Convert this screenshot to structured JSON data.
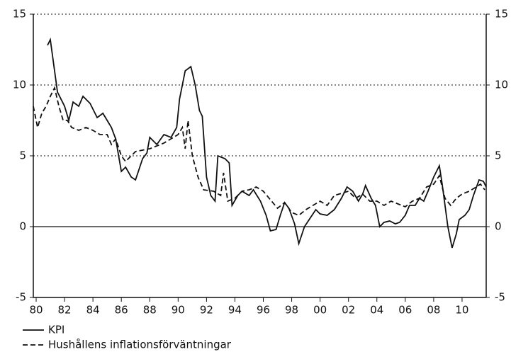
{
  "chart_data": {
    "type": "line",
    "xlim": [
      1979.8,
      2011.7
    ],
    "xticks": [
      {
        "value": 1980,
        "label": "80"
      },
      {
        "value": 1982,
        "label": "82"
      },
      {
        "value": 1984,
        "label": "84"
      },
      {
        "value": 1986,
        "label": "86"
      },
      {
        "value": 1988,
        "label": "88"
      },
      {
        "value": 1990,
        "label": "90"
      },
      {
        "value": 1992,
        "label": "92"
      },
      {
        "value": 1994,
        "label": "94"
      },
      {
        "value": 1996,
        "label": "96"
      },
      {
        "value": 1998,
        "label": "98"
      },
      {
        "value": 2000,
        "label": "00"
      },
      {
        "value": 2002,
        "label": "02"
      },
      {
        "value": 2004,
        "label": "04"
      },
      {
        "value": 2006,
        "label": "06"
      },
      {
        "value": 2008,
        "label": "08"
      },
      {
        "value": 2010,
        "label": "10"
      }
    ],
    "ylim": [
      -5,
      15
    ],
    "yticks": [
      -5,
      0,
      5,
      10,
      15
    ],
    "y2lim": [
      -5,
      15
    ],
    "y2ticks": [
      -5,
      0,
      5,
      10,
      15
    ],
    "grid": true,
    "series": [
      {
        "name": "KPI",
        "color": "#111111",
        "line_style": "solid",
        "x": [
          1980.8,
          1981,
          1981.5,
          1982,
          1982.3,
          1982.6,
          1983,
          1983.3,
          1983.8,
          1984.3,
          1984.7,
          1985.3,
          1985.6,
          1986,
          1986.3,
          1986.7,
          1987,
          1987.5,
          1987.8,
          1988,
          1988.5,
          1989,
          1989.5,
          1989.9,
          1990.1,
          1990.5,
          1990.9,
          1991.2,
          1991.5,
          1991.7,
          1992,
          1992.3,
          1992.6,
          1992.8,
          1993.3,
          1993.6,
          1993.8,
          1994.2,
          1994.5,
          1995,
          1995.3,
          1995.8,
          1996.2,
          1996.5,
          1996.9,
          1997.2,
          1997.5,
          1997.8,
          1998.2,
          1998.5,
          1998.9,
          1999.3,
          1999.7,
          2000,
          2000.5,
          2001,
          2001.5,
          2001.9,
          2002.3,
          2002.7,
          2003,
          2003.2,
          2003.6,
          2003.9,
          2004.2,
          2004.5,
          2004.9,
          2005.3,
          2005.6,
          2006,
          2006.3,
          2006.7,
          2007,
          2007.3,
          2007.6,
          2008,
          2008.4,
          2008.6,
          2009,
          2009.3,
          2009.6,
          2009.8,
          2010.2,
          2010.5,
          2010.8,
          2011.2,
          2011.5,
          2011.7
        ],
        "values": [
          12.8,
          13.2,
          9.5,
          8.5,
          7.5,
          8.8,
          8.5,
          9.2,
          8.7,
          7.7,
          8,
          7,
          6.2,
          3.9,
          4.2,
          3.5,
          3.3,
          4.8,
          5.2,
          6.3,
          5.8,
          6.5,
          6.3,
          7,
          9,
          11,
          11.3,
          10,
          8.2,
          7.8,
          3.5,
          2.2,
          1.8,
          5,
          4.8,
          4.5,
          1.5,
          2.2,
          2.5,
          2.2,
          2.6,
          1.8,
          0.8,
          -0.3,
          -0.2,
          0.8,
          1.7,
          1.3,
          0.2,
          -1.2,
          0,
          0.6,
          1.2,
          0.9,
          0.8,
          1.2,
          2,
          2.8,
          2.5,
          1.8,
          2.3,
          2.9,
          2,
          1.5,
          0,
          0.3,
          0.4,
          0.2,
          0.3,
          0.8,
          1.5,
          1.5,
          2,
          1.8,
          2.5,
          3.5,
          4.3,
          3,
          0,
          -1.5,
          -0.5,
          0.5,
          0.8,
          1.2,
          2.2,
          3.3,
          3.2,
          2.8
        ]
      },
      {
        "name": "Hushållens inflationsförväntningar",
        "color": "#111111",
        "line_style": "dashed",
        "x": [
          1979.8,
          1980.1,
          1980.4,
          1980.7,
          1981,
          1981.3,
          1981.6,
          1981.9,
          1982.2,
          1982.5,
          1983,
          1983.5,
          1984,
          1984.5,
          1985,
          1985.3,
          1985.6,
          1986,
          1986.3,
          1987,
          1988,
          1988.5,
          1989,
          1989.5,
          1990,
          1990.3,
          1990.5,
          1990.7,
          1991,
          1991.4,
          1991.8,
          1992.5,
          1993,
          1993.2,
          1993.5,
          1994,
          1994.5,
          1995,
          1995.5,
          1996,
          1996.5,
          1997,
          1997.5,
          1998,
          1998.5,
          1999,
          1999.5,
          2000,
          2000.5,
          2001,
          2002,
          2002.5,
          2003,
          2003.5,
          2004,
          2004.5,
          2005,
          2005.5,
          2006,
          2006.5,
          2007,
          2007.5,
          2008,
          2008.4,
          2008.8,
          2009.2,
          2009.6,
          2010,
          2010.5,
          2011,
          2011.3,
          2011.6
        ],
        "values": [
          8.5,
          7,
          8,
          8.5,
          9.2,
          9.8,
          8.5,
          7.5,
          7.5,
          7,
          6.8,
          7,
          6.8,
          6.5,
          6.5,
          5.8,
          6.2,
          5,
          4.6,
          5.3,
          5.5,
          5.7,
          5.9,
          6.2,
          6.5,
          7,
          5.5,
          7.5,
          5,
          3.5,
          2.6,
          2.5,
          2.2,
          3.8,
          1.8,
          2,
          2.5,
          2.6,
          2.8,
          2.5,
          1.9,
          1.3,
          1.7,
          1,
          0.8,
          1.2,
          1.5,
          1.8,
          1.5,
          2.2,
          2.5,
          2,
          2.3,
          1.8,
          1.8,
          1.5,
          1.8,
          1.6,
          1.4,
          1.8,
          2,
          2.8,
          3,
          3.6,
          2,
          1.5,
          2,
          2.3,
          2.5,
          2.8,
          3,
          2.6
        ]
      }
    ]
  }
}
